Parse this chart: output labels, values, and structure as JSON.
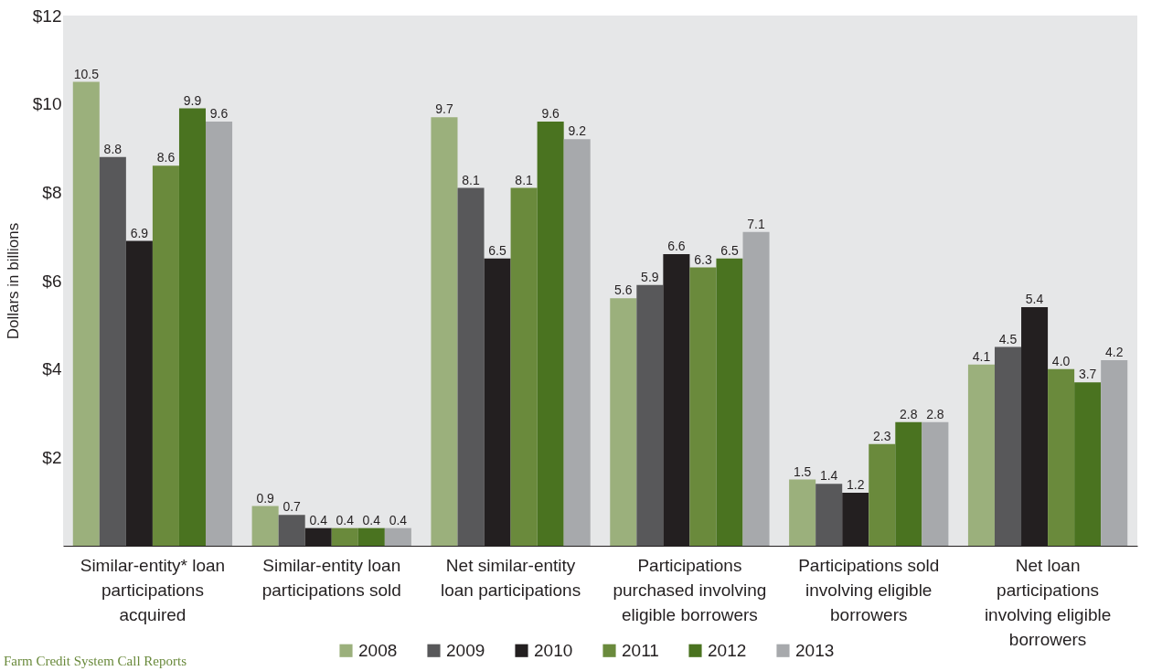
{
  "chart_data": {
    "type": "bar",
    "ylabel": "Dollars in billions",
    "categories": [
      "Similar-entity* loan participations acquired",
      "Similar-entity loan participations sold",
      "Net similar-entity loan participations",
      "Participations purchased involving eligible borrowers",
      "Participations sold involving eligible borrowers",
      "Net loan participations involving eligible borrowers"
    ],
    "series": [
      {
        "name": "2008",
        "color": "#9bb07c",
        "values": [
          10.5,
          0.9,
          9.7,
          5.6,
          1.5,
          4.1
        ],
        "value_labels": [
          "10.5",
          "0.9",
          "9.7",
          "5.6",
          "1.5",
          "4.1"
        ]
      },
      {
        "name": "2009",
        "color": "#58585a",
        "values": [
          8.8,
          0.7,
          8.1,
          5.9,
          1.4,
          4.5
        ],
        "value_labels": [
          "8.8",
          "0.7",
          "8.1",
          "5.9",
          "1.4",
          "4.5"
        ]
      },
      {
        "name": "2010",
        "color": "#231f20",
        "values": [
          6.9,
          0.4,
          6.5,
          6.6,
          1.2,
          5.4
        ],
        "value_labels": [
          "6.9",
          "0.4",
          "6.5",
          "6.6",
          "1.2",
          "5.4"
        ]
      },
      {
        "name": "2011",
        "color": "#6a8a3c",
        "values": [
          8.6,
          0.4,
          8.1,
          6.3,
          2.3,
          4.0
        ],
        "value_labels": [
          "8.6",
          "0.4",
          "8.1",
          "6.3",
          "2.3",
          "4.0"
        ]
      },
      {
        "name": "2012",
        "color": "#4a7320",
        "values": [
          9.9,
          0.4,
          9.6,
          6.5,
          2.8,
          3.7
        ],
        "value_labels": [
          "9.9",
          "0.4",
          "9.6",
          "6.5",
          "2.8",
          "3.7"
        ]
      },
      {
        "name": "2013",
        "color": "#a7a9ac",
        "values": [
          9.6,
          0.4,
          9.2,
          7.1,
          2.8,
          4.2
        ],
        "value_labels": [
          "9.6",
          "0.4",
          "9.2",
          "7.1",
          "2.8",
          "4.2"
        ]
      }
    ],
    "ylim": [
      0,
      12
    ],
    "yticks": [
      {
        "value": 2,
        "label": "$2"
      },
      {
        "value": 4,
        "label": "$4"
      },
      {
        "value": 6,
        "label": "$6"
      },
      {
        "value": 8,
        "label": "$8"
      },
      {
        "value": 10,
        "label": "$10"
      },
      {
        "value": 12,
        "label": "$12"
      }
    ],
    "grid": false,
    "legend": "bottom",
    "annotations": [
      "Farm Credit System Call Reports"
    ]
  }
}
